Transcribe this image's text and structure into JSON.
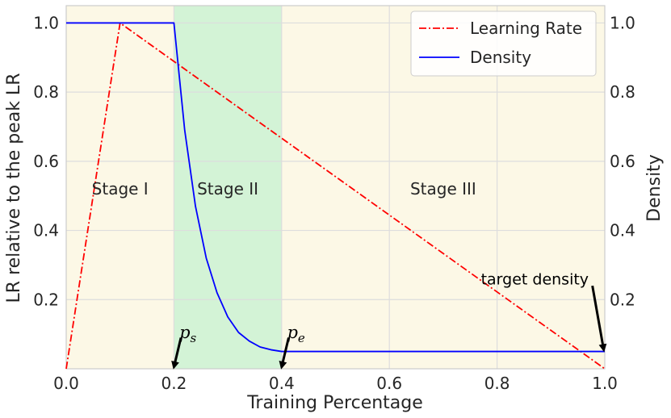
{
  "chart_data": {
    "type": "line",
    "xlabel": "Training Percentage",
    "ylabel_left": "LR relative to the peak LR",
    "ylabel_right": "Density",
    "xlim": [
      0.0,
      1.0
    ],
    "ylim": [
      0.0,
      1.05
    ],
    "x_ticks": [
      "0.0",
      "0.2",
      "0.4",
      "0.6",
      "0.8",
      "1.0"
    ],
    "x_tick_values": [
      0.0,
      0.2,
      0.4,
      0.6,
      0.8,
      1.0
    ],
    "y_ticks": [
      "0.2",
      "0.4",
      "0.6",
      "0.8",
      "1.0"
    ],
    "y_tick_values": [
      0.2,
      0.4,
      0.6,
      0.8,
      1.0
    ],
    "grid": true,
    "legend_position": "top-right",
    "regions": [
      {
        "label": "Stage I",
        "x_start": 0.0,
        "x_end": 0.2,
        "color": "#fcf8e6",
        "label_y": 0.52
      },
      {
        "label": "Stage II",
        "x_start": 0.2,
        "x_end": 0.4,
        "color": "#d3f3d6",
        "label_y": 0.52
      },
      {
        "label": "Stage III",
        "x_start": 0.4,
        "x_end": 1.0,
        "color": "#fcf8e6",
        "label_y": 0.52
      }
    ],
    "series": [
      {
        "name": "Learning Rate",
        "color": "#ff0000",
        "style": "dashdot",
        "x": [
          0.0,
          0.1,
          1.0
        ],
        "y": [
          0.0,
          1.0,
          0.0
        ]
      },
      {
        "name": "Density",
        "color": "#0000ff",
        "style": "solid",
        "x": [
          0.0,
          0.2,
          0.22,
          0.24,
          0.26,
          0.28,
          0.3,
          0.32,
          0.34,
          0.36,
          0.38,
          0.4,
          1.0
        ],
        "y": [
          1.0,
          1.0,
          0.69,
          0.47,
          0.32,
          0.22,
          0.15,
          0.105,
          0.08,
          0.063,
          0.055,
          0.05,
          0.05
        ]
      }
    ],
    "annotations": [
      {
        "kind": "math",
        "symbol": "p",
        "subscript": "s",
        "text_x": 0.21,
        "text_y": 0.105,
        "arrow_from": [
          0.213,
          0.09
        ],
        "arrow_to": [
          0.2,
          0.005
        ]
      },
      {
        "kind": "math",
        "symbol": "p",
        "subscript": "e",
        "text_x": 0.41,
        "text_y": 0.105,
        "arrow_from": [
          0.413,
          0.09
        ],
        "arrow_to": [
          0.4,
          0.005
        ]
      },
      {
        "kind": "text",
        "text": "target density",
        "text_x": 0.77,
        "text_y": 0.26,
        "arrow_from": [
          0.977,
          0.24
        ],
        "arrow_to": [
          0.998,
          0.055
        ]
      }
    ]
  }
}
